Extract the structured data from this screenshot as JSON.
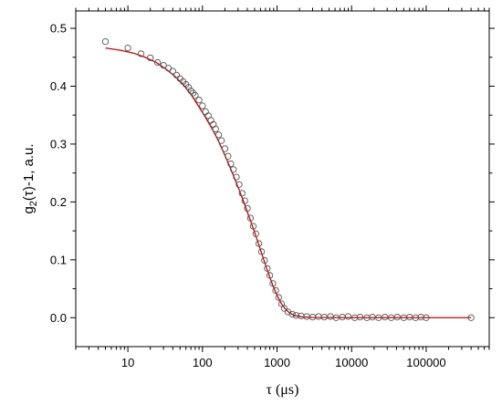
{
  "chart_data": {
    "type": "scatter",
    "title": "",
    "xlabel": "τ (μs)",
    "ylabel": "g2(τ)-1, a.u.",
    "ylabel_parts": {
      "base": "g",
      "sub": "2",
      "rest": "(τ)-1, a.u."
    },
    "x_scale": "log",
    "xlim": [
      2,
      700000
    ],
    "ylim": [
      -0.05,
      0.53
    ],
    "x_ticks": [
      10,
      100,
      1000,
      10000,
      100000
    ],
    "x_tick_labels": [
      "10",
      "100",
      "1000",
      "10000",
      "100000"
    ],
    "y_ticks": [
      0.0,
      0.1,
      0.2,
      0.3,
      0.4,
      0.5
    ],
    "y_tick_labels": [
      "0.0",
      "0.1",
      "0.2",
      "0.3",
      "0.4",
      "0.5"
    ],
    "grid": false,
    "legend": "none",
    "series": [
      {
        "kind": "scatter",
        "marker": "open-circle",
        "color": "#555555",
        "points": [
          [
            5,
            0.477
          ],
          [
            10,
            0.466
          ],
          [
            15,
            0.456
          ],
          [
            20,
            0.449
          ],
          [
            25,
            0.441
          ],
          [
            30,
            0.436
          ],
          [
            35,
            0.431
          ],
          [
            40,
            0.426
          ],
          [
            45,
            0.419
          ],
          [
            50,
            0.413
          ],
          [
            55,
            0.408
          ],
          [
            60,
            0.403
          ],
          [
            65,
            0.398
          ],
          [
            70,
            0.392
          ],
          [
            75,
            0.388
          ],
          [
            80,
            0.384
          ],
          [
            90,
            0.376
          ],
          [
            100,
            0.366
          ],
          [
            110,
            0.356
          ],
          [
            120,
            0.349
          ],
          [
            130,
            0.341
          ],
          [
            140,
            0.334
          ],
          [
            150,
            0.326
          ],
          [
            165,
            0.316
          ],
          [
            180,
            0.306
          ],
          [
            200,
            0.292
          ],
          [
            220,
            0.279
          ],
          [
            240,
            0.266
          ],
          [
            260,
            0.256
          ],
          [
            285,
            0.243
          ],
          [
            310,
            0.23
          ],
          [
            340,
            0.215
          ],
          [
            370,
            0.202
          ],
          [
            400,
            0.189
          ],
          [
            440,
            0.172
          ],
          [
            480,
            0.158
          ],
          [
            520,
            0.145
          ],
          [
            570,
            0.128
          ],
          [
            620,
            0.114
          ],
          [
            680,
            0.099
          ],
          [
            740,
            0.085
          ],
          [
            800,
            0.073
          ],
          [
            880,
            0.059
          ],
          [
            960,
            0.047
          ],
          [
            1050,
            0.035
          ],
          [
            1150,
            0.024
          ],
          [
            1250,
            0.016
          ],
          [
            1400,
            0.01
          ],
          [
            1600,
            0.006
          ],
          [
            1800,
            0.004
          ],
          [
            2100,
            0.003
          ],
          [
            2500,
            0.002
          ],
          [
            3000,
            0.001
          ],
          [
            3600,
            0.002
          ],
          [
            4300,
            0.001
          ],
          [
            5200,
            0.002
          ],
          [
            6200,
            0.0
          ],
          [
            7500,
            0.001
          ],
          [
            9000,
            0.002
          ],
          [
            11000,
            0.0
          ],
          [
            13000,
            0.001
          ],
          [
            16000,
            0.0
          ],
          [
            19000,
            0.001
          ],
          [
            23000,
            0.0
          ],
          [
            28000,
            0.001
          ],
          [
            34000,
            0.0
          ],
          [
            41000,
            0.001
          ],
          [
            50000,
            0.0
          ],
          [
            60000,
            0.001
          ],
          [
            72000,
            0.0
          ],
          [
            85000,
            0.001
          ],
          [
            100000,
            0.0
          ],
          [
            400000,
            0.0
          ]
        ]
      },
      {
        "kind": "line",
        "color": "#cc0000",
        "points": [
          [
            5,
            0.466
          ],
          [
            8,
            0.462
          ],
          [
            12,
            0.457
          ],
          [
            17,
            0.45
          ],
          [
            24,
            0.441
          ],
          [
            32,
            0.43
          ],
          [
            42,
            0.418
          ],
          [
            55,
            0.403
          ],
          [
            70,
            0.386
          ],
          [
            90,
            0.364
          ],
          [
            110,
            0.346
          ],
          [
            135,
            0.326
          ],
          [
            160,
            0.308
          ],
          [
            190,
            0.287
          ],
          [
            225,
            0.265
          ],
          [
            265,
            0.243
          ],
          [
            310,
            0.221
          ],
          [
            360,
            0.199
          ],
          [
            420,
            0.175
          ],
          [
            490,
            0.151
          ],
          [
            570,
            0.126
          ],
          [
            660,
            0.101
          ],
          [
            760,
            0.078
          ],
          [
            870,
            0.057
          ],
          [
            990,
            0.04
          ],
          [
            1120,
            0.026
          ],
          [
            1270,
            0.016
          ],
          [
            1450,
            0.009
          ],
          [
            1700,
            0.004
          ],
          [
            2100,
            0.0015
          ],
          [
            3000,
            0.0004
          ],
          [
            10000,
            0.0
          ],
          [
            100000,
            0.0
          ],
          [
            400000,
            0.0
          ]
        ]
      }
    ]
  }
}
